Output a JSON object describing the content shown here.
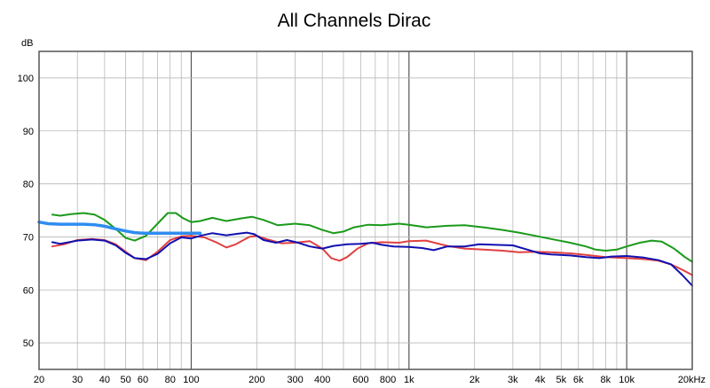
{
  "chart_data": {
    "type": "line",
    "title": "All Channels Dirac",
    "ylabel": "dB",
    "xlabel": "",
    "x_scale": "log",
    "xlim": [
      20,
      20000
    ],
    "ylim": [
      45,
      105
    ],
    "grid": true,
    "legend": "none",
    "x_ticks": [
      {
        "value": 20,
        "label": "20"
      },
      {
        "value": 30,
        "label": "30"
      },
      {
        "value": 40,
        "label": "40"
      },
      {
        "value": 50,
        "label": "50"
      },
      {
        "value": 60,
        "label": "60"
      },
      {
        "value": 80,
        "label": "80"
      },
      {
        "value": 100,
        "label": "100"
      },
      {
        "value": 200,
        "label": "200"
      },
      {
        "value": 300,
        "label": "300"
      },
      {
        "value": 400,
        "label": "400"
      },
      {
        "value": 600,
        "label": "600"
      },
      {
        "value": 800,
        "label": "800"
      },
      {
        "value": 1000,
        "label": "1k"
      },
      {
        "value": 2000,
        "label": "2k"
      },
      {
        "value": 3000,
        "label": "3k"
      },
      {
        "value": 4000,
        "label": "4k"
      },
      {
        "value": 5000,
        "label": "5k"
      },
      {
        "value": 6000,
        "label": "6k"
      },
      {
        "value": 8000,
        "label": "8k"
      },
      {
        "value": 10000,
        "label": "10k"
      },
      {
        "value": 20000,
        "label": "20kHz"
      }
    ],
    "y_ticks": [
      {
        "value": 50,
        "label": "50"
      },
      {
        "value": 60,
        "label": "60"
      },
      {
        "value": 70,
        "label": "70"
      },
      {
        "value": 80,
        "label": "80"
      },
      {
        "value": 90,
        "label": "90"
      },
      {
        "value": 100,
        "label": "100"
      }
    ],
    "series": [
      {
        "color": "#1a9a1a",
        "width": 2,
        "points": [
          [
            23,
            74.2
          ],
          [
            25,
            74.0
          ],
          [
            28,
            74.3
          ],
          [
            32,
            74.5
          ],
          [
            36,
            74.2
          ],
          [
            40,
            73.2
          ],
          [
            45,
            71.5
          ],
          [
            50,
            69.8
          ],
          [
            55,
            69.3
          ],
          [
            62,
            70.2
          ],
          [
            70,
            72.5
          ],
          [
            78,
            74.5
          ],
          [
            85,
            74.5
          ],
          [
            92,
            73.5
          ],
          [
            100,
            72.8
          ],
          [
            110,
            73.0
          ],
          [
            125,
            73.6
          ],
          [
            145,
            73.0
          ],
          [
            170,
            73.5
          ],
          [
            190,
            73.8
          ],
          [
            215,
            73.2
          ],
          [
            250,
            72.2
          ],
          [
            300,
            72.5
          ],
          [
            350,
            72.2
          ],
          [
            400,
            71.3
          ],
          [
            450,
            70.7
          ],
          [
            500,
            71.0
          ],
          [
            560,
            71.8
          ],
          [
            650,
            72.3
          ],
          [
            750,
            72.2
          ],
          [
            900,
            72.5
          ],
          [
            1000,
            72.3
          ],
          [
            1200,
            71.8
          ],
          [
            1500,
            72.1
          ],
          [
            1800,
            72.2
          ],
          [
            2200,
            71.8
          ],
          [
            2700,
            71.3
          ],
          [
            3200,
            70.8
          ],
          [
            3800,
            70.2
          ],
          [
            4500,
            69.6
          ],
          [
            5500,
            68.9
          ],
          [
            6500,
            68.2
          ],
          [
            7200,
            67.6
          ],
          [
            8000,
            67.4
          ],
          [
            9000,
            67.6
          ],
          [
            10000,
            68.2
          ],
          [
            11500,
            68.9
          ],
          [
            13000,
            69.3
          ],
          [
            14500,
            69.1
          ],
          [
            16500,
            67.8
          ],
          [
            18500,
            66.2
          ],
          [
            20000,
            65.3
          ]
        ]
      },
      {
        "color": "#e04040",
        "width": 2,
        "points": [
          [
            23,
            68.2
          ],
          [
            26,
            68.6
          ],
          [
            30,
            69.4
          ],
          [
            35,
            69.6
          ],
          [
            40,
            69.4
          ],
          [
            45,
            68.6
          ],
          [
            50,
            67.2
          ],
          [
            55,
            66.0
          ],
          [
            62,
            65.6
          ],
          [
            70,
            67.2
          ],
          [
            80,
            69.4
          ],
          [
            90,
            70.1
          ],
          [
            100,
            70.2
          ],
          [
            115,
            69.9
          ],
          [
            130,
            69.0
          ],
          [
            145,
            68.0
          ],
          [
            160,
            68.6
          ],
          [
            185,
            70.0
          ],
          [
            200,
            70.2
          ],
          [
            225,
            69.5
          ],
          [
            260,
            68.8
          ],
          [
            300,
            68.9
          ],
          [
            350,
            69.2
          ],
          [
            400,
            67.8
          ],
          [
            440,
            66.0
          ],
          [
            480,
            65.5
          ],
          [
            520,
            66.2
          ],
          [
            580,
            67.8
          ],
          [
            650,
            68.8
          ],
          [
            750,
            69.0
          ],
          [
            900,
            68.9
          ],
          [
            1000,
            69.2
          ],
          [
            1200,
            69.3
          ],
          [
            1500,
            68.3
          ],
          [
            1800,
            67.8
          ],
          [
            2200,
            67.6
          ],
          [
            2700,
            67.4
          ],
          [
            3200,
            67.1
          ],
          [
            3800,
            67.2
          ],
          [
            4500,
            67.1
          ],
          [
            5500,
            66.9
          ],
          [
            6500,
            66.6
          ],
          [
            8000,
            66.2
          ],
          [
            10000,
            66.0
          ],
          [
            12000,
            65.8
          ],
          [
            14000,
            65.5
          ],
          [
            16000,
            64.8
          ],
          [
            18000,
            63.8
          ],
          [
            20000,
            62.8
          ]
        ]
      },
      {
        "color": "#1010b0",
        "width": 2,
        "points": [
          [
            23,
            69.0
          ],
          [
            25,
            68.7
          ],
          [
            30,
            69.3
          ],
          [
            35,
            69.5
          ],
          [
            40,
            69.3
          ],
          [
            45,
            68.4
          ],
          [
            50,
            67.0
          ],
          [
            55,
            66.0
          ],
          [
            62,
            65.8
          ],
          [
            70,
            66.8
          ],
          [
            80,
            68.8
          ],
          [
            90,
            69.9
          ],
          [
            100,
            69.7
          ],
          [
            110,
            70.2
          ],
          [
            125,
            70.7
          ],
          [
            145,
            70.3
          ],
          [
            165,
            70.6
          ],
          [
            180,
            70.8
          ],
          [
            195,
            70.5
          ],
          [
            215,
            69.4
          ],
          [
            245,
            68.9
          ],
          [
            275,
            69.4
          ],
          [
            310,
            68.9
          ],
          [
            350,
            68.2
          ],
          [
            400,
            67.8
          ],
          [
            450,
            68.3
          ],
          [
            520,
            68.6
          ],
          [
            600,
            68.7
          ],
          [
            680,
            68.9
          ],
          [
            750,
            68.5
          ],
          [
            850,
            68.2
          ],
          [
            1000,
            68.1
          ],
          [
            1150,
            67.9
          ],
          [
            1300,
            67.5
          ],
          [
            1500,
            68.2
          ],
          [
            1800,
            68.2
          ],
          [
            2100,
            68.6
          ],
          [
            2500,
            68.5
          ],
          [
            3000,
            68.4
          ],
          [
            3500,
            67.6
          ],
          [
            4000,
            66.9
          ],
          [
            4500,
            66.7
          ],
          [
            5500,
            66.5
          ],
          [
            6500,
            66.2
          ],
          [
            7500,
            66.0
          ],
          [
            8500,
            66.3
          ],
          [
            10000,
            66.4
          ],
          [
            12000,
            66.1
          ],
          [
            14000,
            65.6
          ],
          [
            16000,
            64.8
          ],
          [
            18000,
            62.8
          ],
          [
            20000,
            60.8
          ]
        ]
      },
      {
        "color": "#2f8cf0",
        "width": 3.5,
        "points": [
          [
            20,
            72.8
          ],
          [
            22,
            72.5
          ],
          [
            25,
            72.4
          ],
          [
            28,
            72.4
          ],
          [
            32,
            72.4
          ],
          [
            36,
            72.3
          ],
          [
            40,
            72.0
          ],
          [
            45,
            71.5
          ],
          [
            50,
            71.1
          ],
          [
            55,
            70.8
          ],
          [
            60,
            70.7
          ],
          [
            70,
            70.7
          ],
          [
            80,
            70.7
          ],
          [
            90,
            70.7
          ],
          [
            100,
            70.7
          ],
          [
            110,
            70.7
          ]
        ]
      }
    ]
  }
}
